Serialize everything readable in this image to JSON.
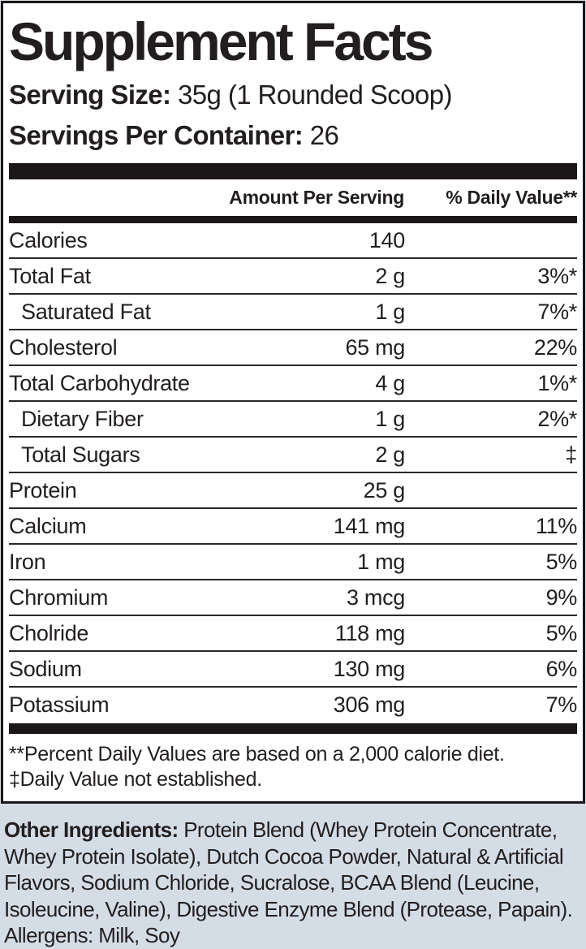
{
  "colors": {
    "ink": "#221e1f",
    "bar": "#1b1718",
    "separator": "#2b2728",
    "panel_background": "#ffffff",
    "page_background": "#d4dde5"
  },
  "label": {
    "title": "Supplement Facts",
    "serving_size_label": "Serving Size:",
    "serving_size_value": "35g (1 Rounded Scoop)",
    "servings_per_container_label": "Servings Per Container:",
    "servings_per_container_value": "26",
    "columns": {
      "amount": "Amount Per Serving",
      "daily_value": "% Daily Value**"
    },
    "rows": [
      {
        "name": "Calories",
        "amount": "140",
        "dv": "",
        "indent": false
      },
      {
        "name": "Total Fat",
        "amount": "2 g",
        "dv": "3%*",
        "indent": false
      },
      {
        "name": "Saturated Fat",
        "amount": "1 g",
        "dv": "7%*",
        "indent": true
      },
      {
        "name": "Cholesterol",
        "amount": "65 mg",
        "dv": "22%",
        "indent": false
      },
      {
        "name": "Total Carbohydrate",
        "amount": "4 g",
        "dv": "1%*",
        "indent": false
      },
      {
        "name": "Dietary Fiber",
        "amount": "1 g",
        "dv": "2%*",
        "indent": true
      },
      {
        "name": "Total Sugars",
        "amount": "2 g",
        "dv": "‡",
        "indent": true
      },
      {
        "name": "Protein",
        "amount": "25 g",
        "dv": "",
        "indent": false
      },
      {
        "name": "Calcium",
        "amount": "141 mg",
        "dv": "11%",
        "indent": false
      },
      {
        "name": "Iron",
        "amount": "1 mg",
        "dv": "5%",
        "indent": false
      },
      {
        "name": "Chromium",
        "amount": "3 mcg",
        "dv": "9%",
        "indent": false
      },
      {
        "name": "Cholride",
        "amount": "118 mg",
        "dv": "5%",
        "indent": false
      },
      {
        "name": "Sodium",
        "amount": "130 mg",
        "dv": "6%",
        "indent": false
      },
      {
        "name": "Potassium",
        "amount": "306 mg",
        "dv": "7%",
        "indent": false
      }
    ],
    "footnotes": [
      "**Percent Daily Values are based on a 2,000 calorie diet.",
      "‡Daily Value not established."
    ]
  },
  "other_ingredients": {
    "label": "Other Ingredients:",
    "text": "Protein Blend (Whey Protein Concentrate, Whey Protein Isolate), Dutch Cocoa Powder, Natural & Artificial Flavors, Sodium Chloride, Sucralose, BCAA Blend (Leucine, Isoleucine, Valine), Digestive Enzyme Blend (Protease, Papain).",
    "allergens": "Allergens: Milk, Soy"
  }
}
